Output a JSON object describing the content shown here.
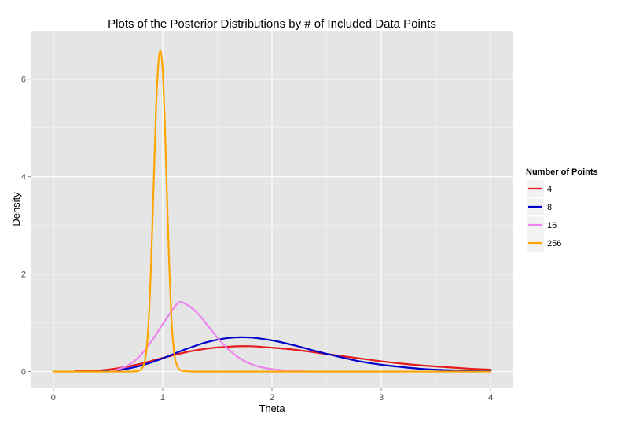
{
  "chart_data": {
    "type": "line",
    "title": "Plots of the Posterior Distributions by # of Included Data Points",
    "xlabel": "Theta",
    "ylabel": "Density",
    "xlim": [
      -0.2,
      4.2
    ],
    "ylim": [
      -0.33,
      6.98
    ],
    "x_ticks": [
      0,
      1,
      2,
      3,
      4
    ],
    "x_tick_labels": [
      "0",
      "1",
      "2",
      "3",
      "4"
    ],
    "y_ticks": [
      0,
      2,
      4,
      6
    ],
    "y_tick_labels": [
      "0",
      "2",
      "4",
      "6"
    ],
    "grid": true,
    "background": "#e5e5e5",
    "legend": {
      "title": "Number of Points",
      "position": "right"
    },
    "series": [
      {
        "name": "4",
        "color": "#e41a1c",
        "x": [
          0.2,
          0.4,
          0.6,
          0.8,
          1.0,
          1.2,
          1.4,
          1.6,
          1.8,
          2.0,
          2.2,
          2.4,
          2.6,
          2.8,
          3.0,
          3.2,
          3.4,
          3.6,
          3.8,
          4.0
        ],
        "y": [
          0.01,
          0.02,
          0.07,
          0.16,
          0.28,
          0.39,
          0.47,
          0.51,
          0.52,
          0.49,
          0.45,
          0.39,
          0.33,
          0.27,
          0.21,
          0.16,
          0.12,
          0.09,
          0.06,
          0.04
        ]
      },
      {
        "name": "8",
        "color": "#0000cc",
        "x": [
          0.4,
          0.6,
          0.8,
          1.0,
          1.2,
          1.4,
          1.6,
          1.8,
          2.0,
          2.2,
          2.4,
          2.6,
          2.8,
          3.0,
          3.2,
          3.4,
          3.6,
          3.8,
          4.0
        ],
        "y": [
          0.0,
          0.03,
          0.12,
          0.27,
          0.45,
          0.6,
          0.69,
          0.7,
          0.64,
          0.54,
          0.42,
          0.31,
          0.21,
          0.14,
          0.09,
          0.05,
          0.03,
          0.02,
          0.01
        ]
      },
      {
        "name": "16",
        "color": "#ee82ee",
        "x": [
          0.5,
          0.6,
          0.7,
          0.8,
          0.9,
          1.0,
          1.1,
          1.15,
          1.2,
          1.3,
          1.4,
          1.5,
          1.6,
          1.7,
          1.8,
          1.9,
          2.0,
          2.2,
          2.4,
          2.6
        ],
        "y": [
          0.0,
          0.05,
          0.15,
          0.34,
          0.63,
          0.97,
          1.3,
          1.42,
          1.4,
          1.24,
          0.98,
          0.7,
          0.46,
          0.28,
          0.16,
          0.09,
          0.05,
          0.01,
          0.0,
          0.0
        ]
      },
      {
        "name": "256",
        "color": "#ffa500",
        "x": [
          0.0,
          0.5,
          0.7,
          0.8,
          0.85,
          0.88,
          0.9,
          0.92,
          0.94,
          0.96,
          0.98,
          1.0,
          1.02,
          1.04,
          1.06,
          1.08,
          1.1,
          1.12,
          1.15,
          1.2,
          1.3,
          1.5,
          2.0,
          3.0,
          4.0
        ],
        "y": [
          0.0,
          0.0,
          0.0,
          0.03,
          0.4,
          1.4,
          2.6,
          4.0,
          5.4,
          6.3,
          6.58,
          6.2,
          5.1,
          3.6,
          2.2,
          1.1,
          0.5,
          0.2,
          0.05,
          0.01,
          0.0,
          0.0,
          0.0,
          0.0,
          0.0
        ]
      }
    ]
  }
}
